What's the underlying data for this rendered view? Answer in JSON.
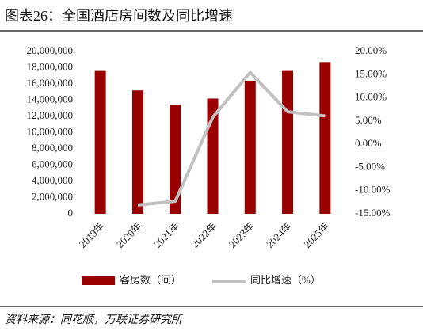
{
  "chart_data": {
    "type": "bar-line",
    "title": "图表26：全国酒店房间数及同比增速",
    "source": "资料来源：同花顺，万联证券研究所",
    "categories": [
      "2019年",
      "2020年",
      "2021年",
      "2022年",
      "2023年",
      "2024年",
      "2025年"
    ],
    "series": [
      {
        "name": "客房数（间）",
        "color": "#990000",
        "type": "bar",
        "values": [
          17600000,
          15200000,
          13450000,
          14200000,
          16400000,
          17600000,
          18700000
        ]
      },
      {
        "name": "同比增速（%）",
        "color": "#c0c0c0",
        "type": "line",
        "axis": "y2",
        "values": [
          null,
          -13.1,
          -12.3,
          5.8,
          15.5,
          7.0,
          6.1
        ]
      }
    ],
    "ylim": [
      0,
      20000000
    ],
    "yticks": [
      0,
      {
        "value": 2000000,
        "label": "2,000,000"
      },
      {
        "value": 4000000,
        "label": "4,000,000"
      },
      {
        "value": 6000000,
        "label": "6,000,000"
      },
      {
        "value": 8000000,
        "label": "8,000,000"
      },
      {
        "value": 10000000,
        "label": "10,000,000"
      },
      {
        "value": 12000000,
        "label": "12,000,000"
      },
      {
        "value": 14000000,
        "label": "14,000,000"
      },
      {
        "value": 16000000,
        "label": "16,000,000"
      },
      {
        "value": 18000000,
        "label": "18,000,000"
      },
      {
        "value": 20000000,
        "label": "20,000,000"
      }
    ],
    "y2lim": [
      -15,
      20
    ],
    "y2ticks": [
      {
        "value": -15,
        "label": "-15.00%"
      },
      {
        "value": -10,
        "label": "-10.00%"
      },
      {
        "value": -5,
        "label": "-5.00%"
      },
      {
        "value": 0,
        "label": "0.00%"
      },
      {
        "value": 5,
        "label": "5.00%"
      },
      {
        "value": 10,
        "label": "10.00%"
      },
      {
        "value": 15,
        "label": "15.00%"
      },
      {
        "value": 20,
        "label": "20.00%"
      }
    ]
  }
}
